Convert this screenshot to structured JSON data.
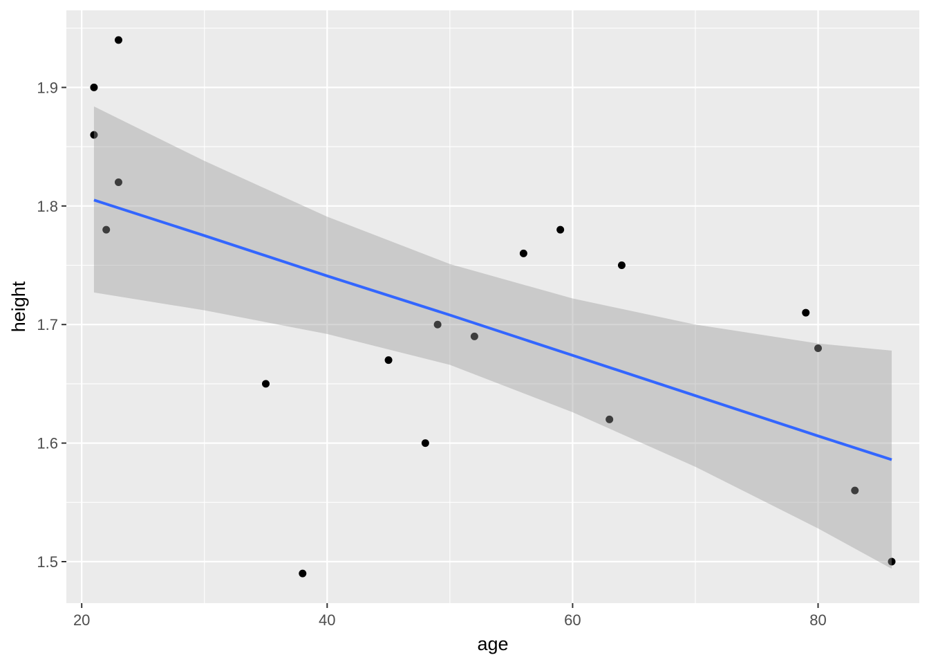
{
  "chart_data": {
    "type": "scatter",
    "title": "",
    "xlabel": "age",
    "ylabel": "height",
    "xlim": [
      18.75,
      88.25
    ],
    "ylim": [
      1.465,
      1.965
    ],
    "x_ticks": [
      20,
      40,
      60,
      80
    ],
    "x_tick_labels": [
      "20",
      "40",
      "60",
      "80"
    ],
    "y_ticks": [
      1.5,
      1.6,
      1.7,
      1.8,
      1.9
    ],
    "y_tick_labels": [
      "1.5",
      "1.6",
      "1.7",
      "1.8",
      "1.9"
    ],
    "x_minor_ticks": [
      30,
      50,
      70
    ],
    "y_minor_ticks": [
      1.55,
      1.65,
      1.75,
      1.85,
      1.95
    ],
    "grid": true,
    "legend": "none",
    "points": {
      "x": [
        21,
        21,
        23,
        23,
        22,
        35,
        38,
        45,
        48,
        49,
        52,
        56,
        59,
        63,
        64,
        79,
        80,
        83,
        86
      ],
      "y": [
        1.9,
        1.86,
        1.94,
        1.82,
        1.78,
        1.65,
        1.49,
        1.67,
        1.6,
        1.7,
        1.69,
        1.76,
        1.78,
        1.62,
        1.75,
        1.71,
        1.68,
        1.56,
        1.5
      ],
      "color": "#000000"
    },
    "regression": {
      "method": "lm",
      "color": "#3366FF",
      "band_color": "#999999",
      "x": [
        21,
        30,
        40,
        50,
        60,
        70,
        80,
        86
      ],
      "fit": [
        1.805,
        1.775,
        1.741,
        1.708,
        1.674,
        1.64,
        1.606,
        1.586
      ],
      "lower": [
        1.727,
        1.712,
        1.692,
        1.666,
        1.626,
        1.58,
        1.528,
        1.494
      ],
      "upper": [
        1.884,
        1.838,
        1.791,
        1.751,
        1.722,
        1.7,
        1.684,
        1.678
      ]
    },
    "panel_background": "#EBEBEB",
    "grid_color": "#FFFFFF"
  }
}
